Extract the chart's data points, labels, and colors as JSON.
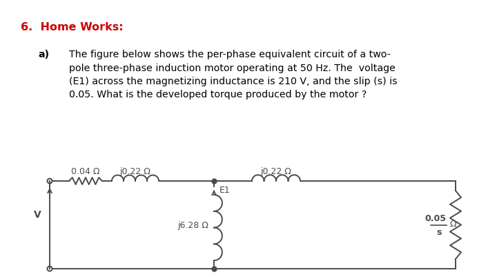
{
  "title": "6.  Home Works:",
  "title_color": "#cc0000",
  "title_fontsize": 11.5,
  "paragraph_label": "a)",
  "paragraph_text": "The figure below shows the per-phase equivalent circuit of a two-\npole three-phase induction motor operating at 50 Hz. The  voltage\n(E1) across the magnetizing inductance is 210 V, and the slip (s) is\n0.05. What is the developed torque produced by the motor ?",
  "paragraph_fontsize": 10.2,
  "bg_color": "#ffffff",
  "circuit_color": "#4a4a4a",
  "label_R1": "0.04 Ω",
  "label_X1": "j0.22 Ω",
  "label_Xm": "j6.28 Ω",
  "label_E1": "E1",
  "label_X2": "j0.22 Ω",
  "label_R2s_top": "0.05",
  "label_R2s_bot": "s",
  "label_Omega": "Ω",
  "label_V": "V",
  "circuit_linewidth": 1.4,
  "circuit_label_fontsize": 9.0,
  "circuit_label_color": "#4a4a4a"
}
